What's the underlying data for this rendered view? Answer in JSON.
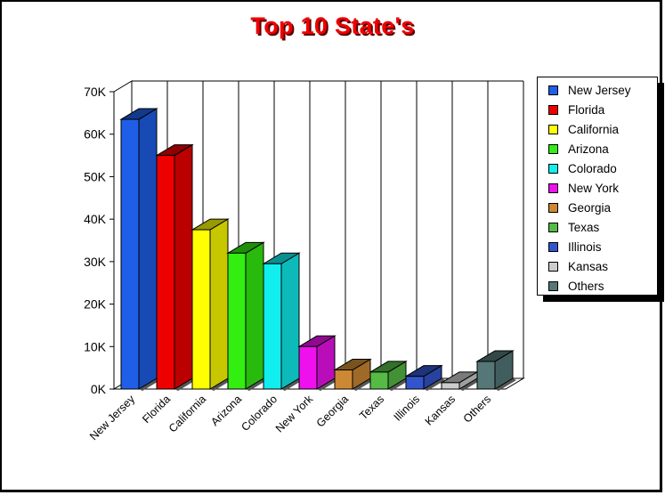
{
  "chart_data": {
    "type": "bar",
    "title": "Top 10 State's",
    "categories": [
      "New Jersey",
      "Florida",
      "California",
      "Arizona",
      "Colorado",
      "New York",
      "Georgia",
      "Texas",
      "Illinois",
      "Kansas",
      "Others"
    ],
    "values": [
      63500,
      55000,
      37500,
      32000,
      29500,
      10000,
      4500,
      4000,
      3000,
      1500,
      6500
    ],
    "colors": [
      "#1f5fe8",
      "#ee0000",
      "#ffff00",
      "#33ee11",
      "#11eeee",
      "#ee11ee",
      "#cc8833",
      "#55bb44",
      "#3355cc",
      "#cccccc",
      "#557777"
    ],
    "y_ticks": [
      "0K",
      "10K",
      "20K",
      "30K",
      "40K",
      "50K",
      "60K",
      "70K"
    ],
    "ylim": [
      0,
      70000
    ],
    "grid": true,
    "legend_position": "right"
  }
}
